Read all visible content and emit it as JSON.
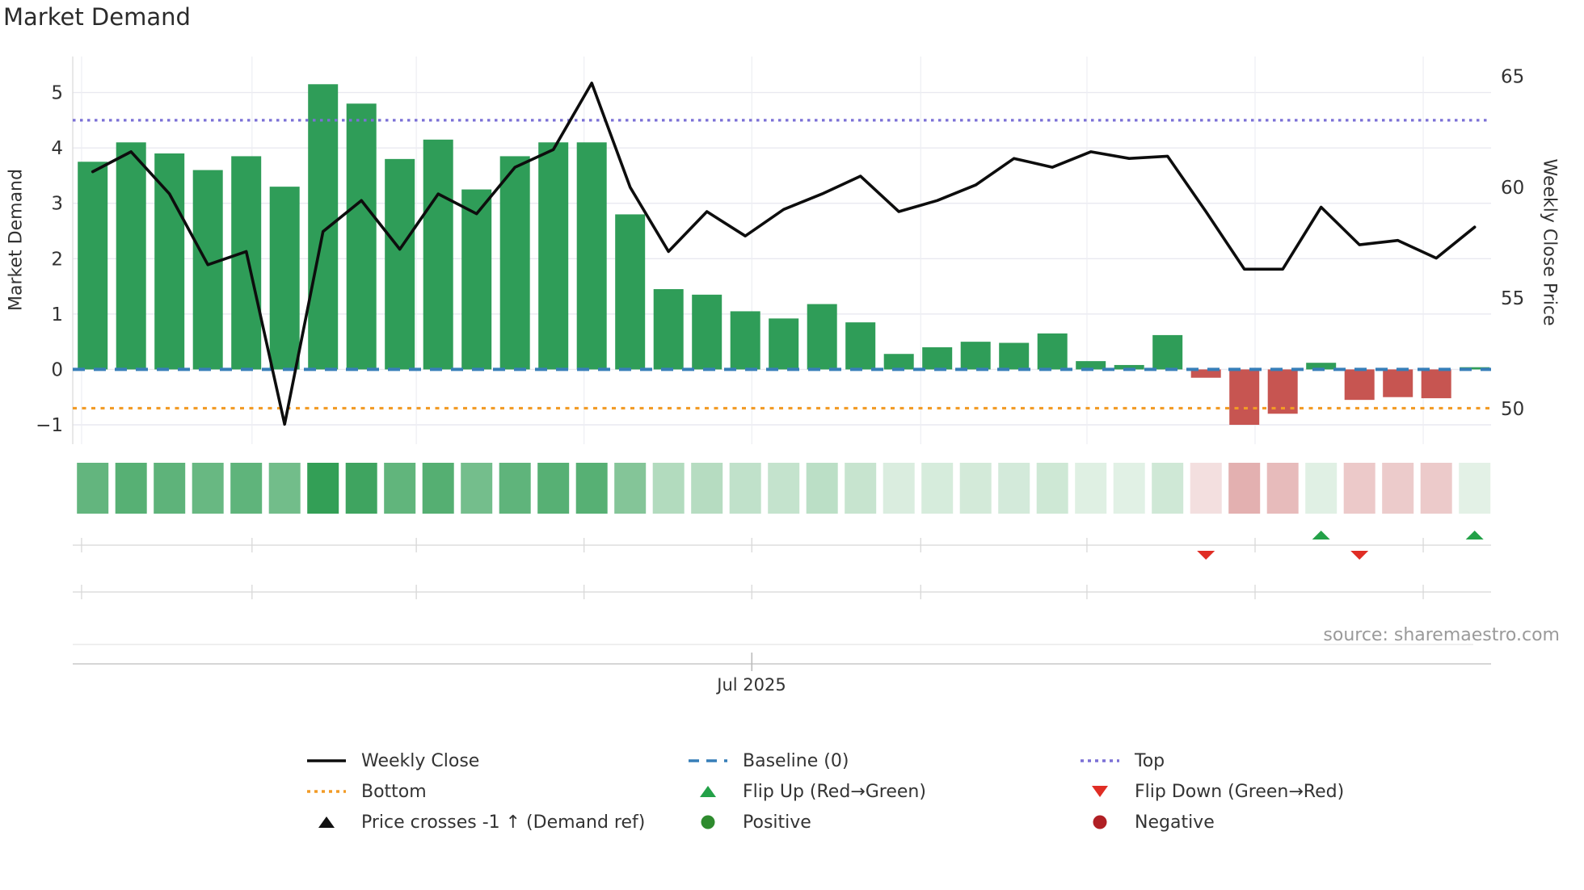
{
  "page": {
    "title": "Market Demand",
    "source": "source: sharemaestro.com"
  },
  "axes": {
    "left": {
      "label": "Market Demand",
      "ticks": [
        5,
        4,
        3,
        2,
        1,
        0,
        -1
      ],
      "range": [
        -1.35,
        5.65
      ]
    },
    "right": {
      "label": "Weekly Close Price",
      "ticks": [
        65,
        60,
        55,
        50
      ],
      "range": [
        48.4,
        65.9
      ]
    },
    "x": {
      "tick_label": "Jul 2025",
      "tick_index": 17.17,
      "month_tick_indices": [
        -0.29,
        4.15,
        8.43,
        12.8,
        17.17,
        21.57,
        25.9,
        30.28,
        34.66
      ]
    }
  },
  "chart_data": {
    "type": "bar+line",
    "title": "Market Demand",
    "n_weeks": 37,
    "series": [
      {
        "name": "Market Demand",
        "type": "bar",
        "axis": "left",
        "values": [
          3.75,
          4.1,
          3.9,
          3.6,
          3.85,
          3.3,
          5.15,
          4.8,
          3.8,
          4.15,
          3.25,
          3.85,
          4.1,
          4.1,
          2.8,
          1.45,
          1.35,
          1.05,
          0.92,
          1.18,
          0.85,
          0.28,
          0.4,
          0.5,
          0.48,
          0.65,
          0.15,
          0.08,
          0.62,
          -0.15,
          -1.0,
          -0.8,
          0.12,
          -0.55,
          -0.5,
          -0.52,
          0.04
        ]
      },
      {
        "name": "Weekly Close",
        "type": "line",
        "axis": "right",
        "values": [
          60.7,
          61.6,
          59.7,
          56.5,
          57.1,
          49.3,
          58.0,
          59.4,
          57.2,
          59.7,
          58.8,
          60.9,
          61.7,
          64.7,
          60.0,
          57.1,
          58.9,
          57.8,
          59.0,
          59.7,
          60.5,
          58.9,
          59.4,
          60.1,
          61.3,
          60.9,
          61.6,
          61.3,
          61.4,
          58.9,
          56.3,
          56.3,
          59.1,
          57.4,
          57.6,
          56.8,
          58.2
        ]
      }
    ],
    "reference_lines": {
      "baseline": 0,
      "top": 4.5,
      "bottom": -0.7
    },
    "flip_up_indices": [
      32,
      36
    ],
    "flip_down_indices": [
      29,
      33
    ],
    "heatmap_source": "Market Demand"
  },
  "legend": {
    "items": [
      {
        "label": "Weekly Close",
        "swatch": "line-solid",
        "color": "#0d0d0d"
      },
      {
        "label": "Bottom",
        "swatch": "line-dotted",
        "color": "#f29b26"
      },
      {
        "label": "Price crosses -1 ↑ (Demand ref)",
        "swatch": "triangle-up",
        "color": "#111111"
      },
      {
        "label": "Baseline (0)",
        "swatch": "line-dashed",
        "color": "#377eb8"
      },
      {
        "label": "Flip Up (Red→Green)",
        "swatch": "triangle-up",
        "color": "#23a148"
      },
      {
        "label": "Positive",
        "swatch": "circle",
        "color": "#2e8b2e"
      },
      {
        "label": "Top",
        "swatch": "line-dotted",
        "color": "#7b70d6"
      },
      {
        "label": "Flip Down (Green→Red)",
        "swatch": "triangle-down",
        "color": "#e02d24"
      },
      {
        "label": "Negative",
        "swatch": "circle",
        "color": "#b01f24"
      }
    ]
  },
  "colors": {
    "bar_positive": "#2f9d58",
    "bar_negative": "#c75551",
    "price_line": "#0d0d0d",
    "baseline": "#377eb8",
    "top_line": "#7b70d6",
    "bottom_line": "#f29b26",
    "flip_up": "#23a148",
    "flip_down": "#e02d24",
    "heat_pos_min": "#e4f2e7",
    "heat_pos_max": "#319e55",
    "heat_neg_min": "#f6e7e7",
    "heat_neg_max": "#e2adad",
    "grid": "#e9e9f0",
    "grid_vertical": "#edeef3",
    "subpanel_line": "#d8d8d8",
    "axis_line": "#c8c8c8",
    "tick_text": "#333333"
  }
}
